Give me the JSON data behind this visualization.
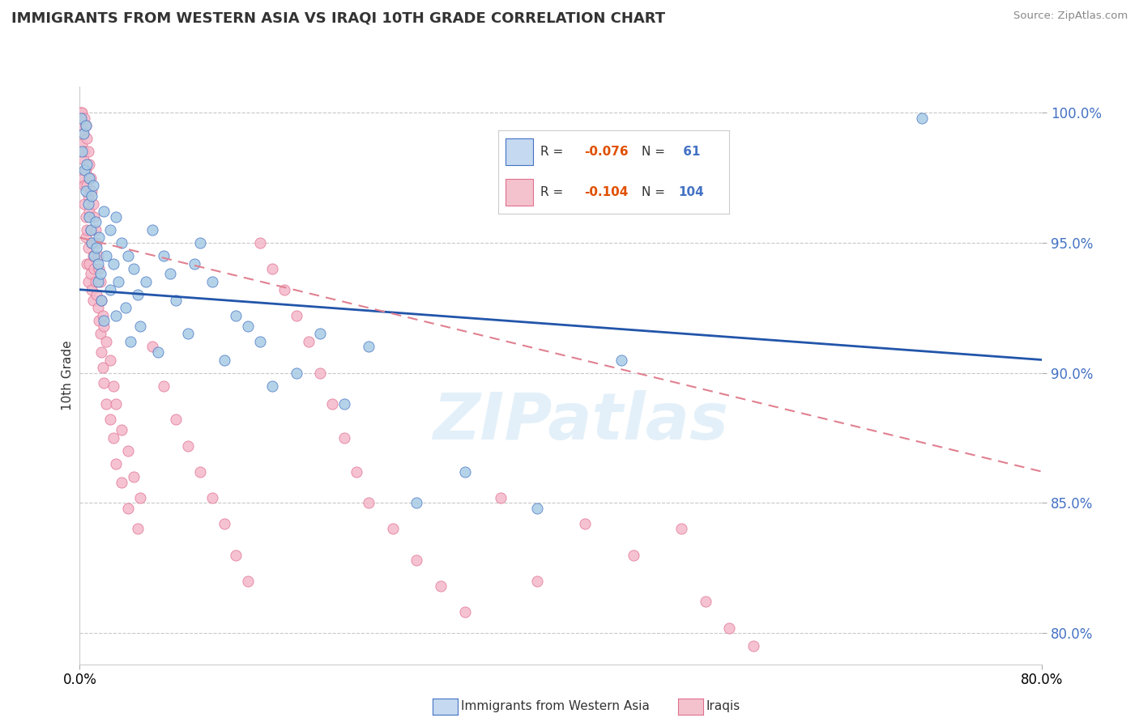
{
  "title": "IMMIGRANTS FROM WESTERN ASIA VS IRAQI 10TH GRADE CORRELATION CHART",
  "source": "Source: ZipAtlas.com",
  "ylabel": "10th Grade",
  "right_yticks": [
    "80.0%",
    "85.0%",
    "90.0%",
    "95.0%",
    "100.0%"
  ],
  "right_ytick_vals": [
    0.8,
    0.85,
    0.9,
    0.95,
    1.0
  ],
  "watermark": "ZIPatlas",
  "xlim": [
    0.0,
    0.8
  ],
  "ylim": [
    0.788,
    1.01
  ],
  "blue_color": "#a8cce4",
  "blue_edge_color": "#4472c4",
  "pink_color": "#f4b8c9",
  "pink_edge_color": "#e07090",
  "trend_blue_color": "#2255aa",
  "trend_pink_color": "#e08090",
  "grid_color": "#c8c8c8",
  "legend_box_blue": "#c5d9f1",
  "legend_box_pink": "#f4c2cc",
  "blue_scatter": [
    [
      0.001,
      0.998
    ],
    [
      0.002,
      0.985
    ],
    [
      0.003,
      0.992
    ],
    [
      0.004,
      0.978
    ],
    [
      0.005,
      0.995
    ],
    [
      0.005,
      0.97
    ],
    [
      0.006,
      0.98
    ],
    [
      0.007,
      0.965
    ],
    [
      0.008,
      0.975
    ],
    [
      0.008,
      0.96
    ],
    [
      0.009,
      0.955
    ],
    [
      0.01,
      0.968
    ],
    [
      0.01,
      0.95
    ],
    [
      0.011,
      0.972
    ],
    [
      0.012,
      0.945
    ],
    [
      0.013,
      0.958
    ],
    [
      0.014,
      0.948
    ],
    [
      0.015,
      0.942
    ],
    [
      0.015,
      0.935
    ],
    [
      0.016,
      0.952
    ],
    [
      0.017,
      0.938
    ],
    [
      0.018,
      0.928
    ],
    [
      0.02,
      0.962
    ],
    [
      0.02,
      0.92
    ],
    [
      0.022,
      0.945
    ],
    [
      0.025,
      0.955
    ],
    [
      0.025,
      0.932
    ],
    [
      0.028,
      0.942
    ],
    [
      0.03,
      0.96
    ],
    [
      0.03,
      0.922
    ],
    [
      0.032,
      0.935
    ],
    [
      0.035,
      0.95
    ],
    [
      0.038,
      0.925
    ],
    [
      0.04,
      0.945
    ],
    [
      0.042,
      0.912
    ],
    [
      0.045,
      0.94
    ],
    [
      0.048,
      0.93
    ],
    [
      0.05,
      0.918
    ],
    [
      0.055,
      0.935
    ],
    [
      0.06,
      0.955
    ],
    [
      0.065,
      0.908
    ],
    [
      0.07,
      0.945
    ],
    [
      0.075,
      0.938
    ],
    [
      0.08,
      0.928
    ],
    [
      0.09,
      0.915
    ],
    [
      0.095,
      0.942
    ],
    [
      0.1,
      0.95
    ],
    [
      0.11,
      0.935
    ],
    [
      0.12,
      0.905
    ],
    [
      0.13,
      0.922
    ],
    [
      0.14,
      0.918
    ],
    [
      0.15,
      0.912
    ],
    [
      0.16,
      0.895
    ],
    [
      0.18,
      0.9
    ],
    [
      0.2,
      0.915
    ],
    [
      0.22,
      0.888
    ],
    [
      0.24,
      0.91
    ],
    [
      0.28,
      0.85
    ],
    [
      0.32,
      0.862
    ],
    [
      0.38,
      0.848
    ],
    [
      0.45,
      0.905
    ],
    [
      0.7,
      0.998
    ]
  ],
  "pink_scatter": [
    [
      0.001,
      1.0
    ],
    [
      0.001,
      0.998
    ],
    [
      0.002,
      1.0
    ],
    [
      0.002,
      0.995
    ],
    [
      0.002,
      0.988
    ],
    [
      0.003,
      0.992
    ],
    [
      0.003,
      0.982
    ],
    [
      0.003,
      0.975
    ],
    [
      0.004,
      0.998
    ],
    [
      0.004,
      0.985
    ],
    [
      0.004,
      0.972
    ],
    [
      0.004,
      0.965
    ],
    [
      0.005,
      0.995
    ],
    [
      0.005,
      0.978
    ],
    [
      0.005,
      0.96
    ],
    [
      0.005,
      0.952
    ],
    [
      0.006,
      0.99
    ],
    [
      0.006,
      0.972
    ],
    [
      0.006,
      0.955
    ],
    [
      0.006,
      0.942
    ],
    [
      0.007,
      0.985
    ],
    [
      0.007,
      0.968
    ],
    [
      0.007,
      0.948
    ],
    [
      0.007,
      0.935
    ],
    [
      0.008,
      0.98
    ],
    [
      0.008,
      0.962
    ],
    [
      0.008,
      0.942
    ],
    [
      0.009,
      0.975
    ],
    [
      0.009,
      0.955
    ],
    [
      0.009,
      0.938
    ],
    [
      0.01,
      0.97
    ],
    [
      0.01,
      0.95
    ],
    [
      0.01,
      0.932
    ],
    [
      0.011,
      0.965
    ],
    [
      0.011,
      0.945
    ],
    [
      0.011,
      0.928
    ],
    [
      0.012,
      0.96
    ],
    [
      0.012,
      0.94
    ],
    [
      0.013,
      0.955
    ],
    [
      0.013,
      0.935
    ],
    [
      0.014,
      0.95
    ],
    [
      0.014,
      0.93
    ],
    [
      0.015,
      0.945
    ],
    [
      0.015,
      0.925
    ],
    [
      0.016,
      0.94
    ],
    [
      0.016,
      0.92
    ],
    [
      0.017,
      0.935
    ],
    [
      0.017,
      0.915
    ],
    [
      0.018,
      0.928
    ],
    [
      0.018,
      0.908
    ],
    [
      0.019,
      0.922
    ],
    [
      0.019,
      0.902
    ],
    [
      0.02,
      0.918
    ],
    [
      0.02,
      0.896
    ],
    [
      0.022,
      0.912
    ],
    [
      0.022,
      0.888
    ],
    [
      0.025,
      0.905
    ],
    [
      0.025,
      0.882
    ],
    [
      0.028,
      0.895
    ],
    [
      0.028,
      0.875
    ],
    [
      0.03,
      0.888
    ],
    [
      0.03,
      0.865
    ],
    [
      0.035,
      0.878
    ],
    [
      0.035,
      0.858
    ],
    [
      0.04,
      0.87
    ],
    [
      0.04,
      0.848
    ],
    [
      0.045,
      0.86
    ],
    [
      0.048,
      0.84
    ],
    [
      0.05,
      0.852
    ],
    [
      0.06,
      0.91
    ],
    [
      0.07,
      0.895
    ],
    [
      0.08,
      0.882
    ],
    [
      0.09,
      0.872
    ],
    [
      0.1,
      0.862
    ],
    [
      0.11,
      0.852
    ],
    [
      0.12,
      0.842
    ],
    [
      0.13,
      0.83
    ],
    [
      0.14,
      0.82
    ],
    [
      0.15,
      0.95
    ],
    [
      0.16,
      0.94
    ],
    [
      0.17,
      0.932
    ],
    [
      0.18,
      0.922
    ],
    [
      0.19,
      0.912
    ],
    [
      0.2,
      0.9
    ],
    [
      0.21,
      0.888
    ],
    [
      0.22,
      0.875
    ],
    [
      0.23,
      0.862
    ],
    [
      0.24,
      0.85
    ],
    [
      0.26,
      0.84
    ],
    [
      0.28,
      0.828
    ],
    [
      0.3,
      0.818
    ],
    [
      0.32,
      0.808
    ],
    [
      0.35,
      0.852
    ],
    [
      0.38,
      0.82
    ],
    [
      0.42,
      0.842
    ],
    [
      0.46,
      0.83
    ],
    [
      0.5,
      0.84
    ],
    [
      0.52,
      0.812
    ],
    [
      0.54,
      0.802
    ],
    [
      0.56,
      0.795
    ]
  ],
  "blue_trend_x": [
    0.0,
    0.8
  ],
  "blue_trend_y": [
    0.932,
    0.905
  ],
  "pink_trend_x": [
    0.0,
    0.8
  ],
  "pink_trend_y": [
    0.952,
    0.862
  ]
}
